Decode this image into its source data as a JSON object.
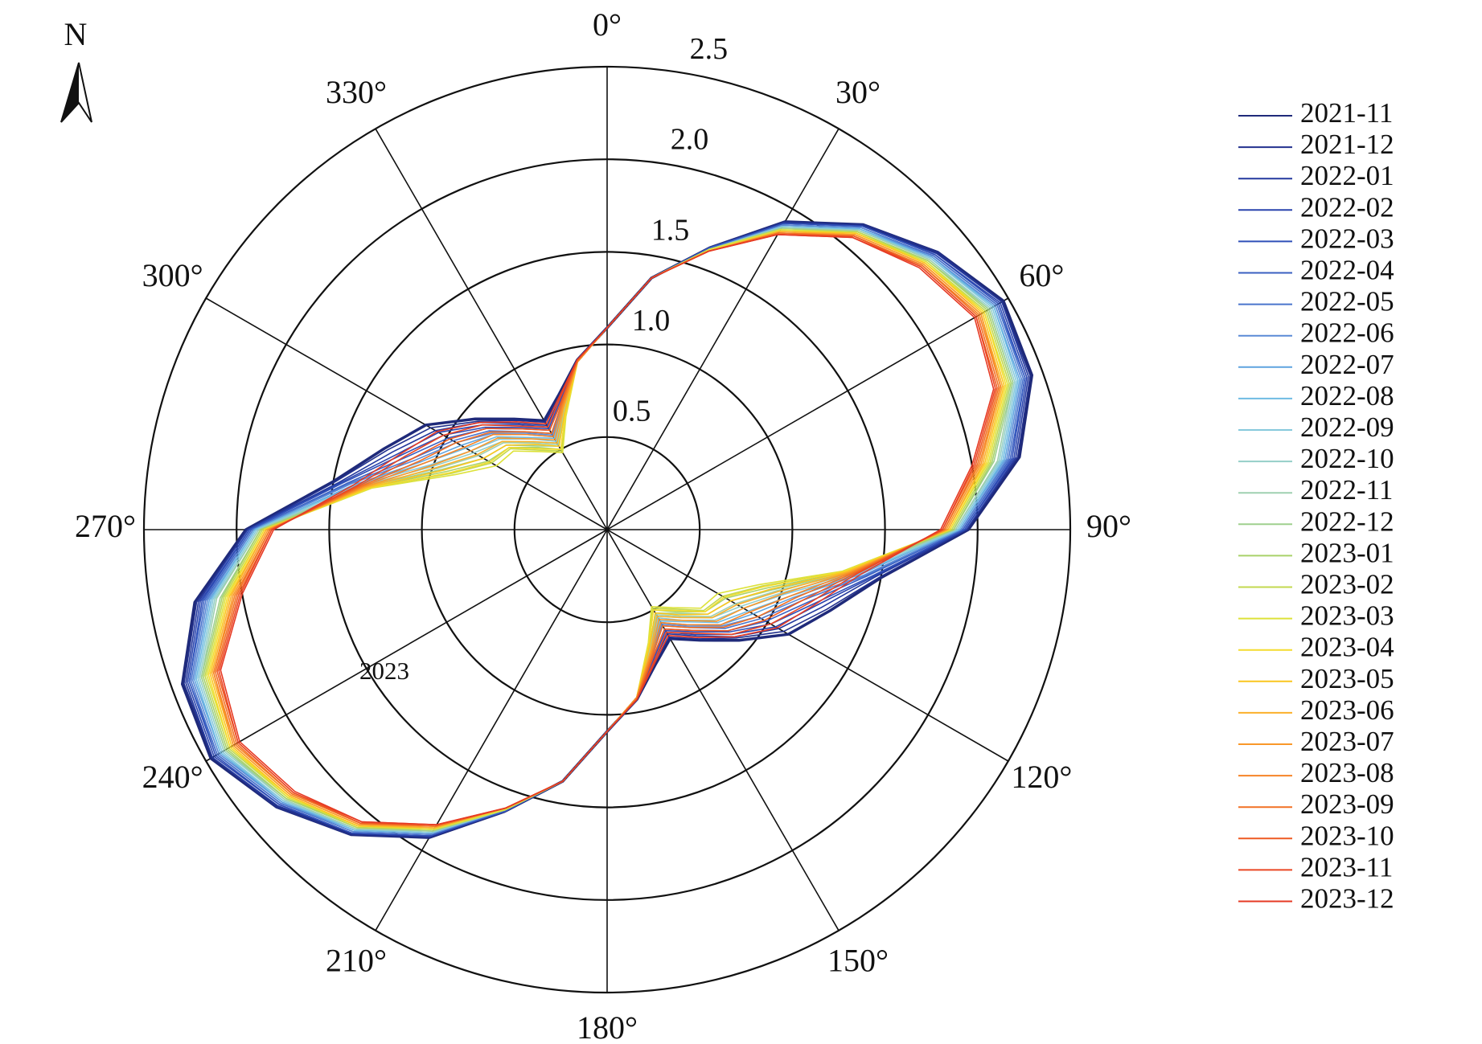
{
  "chart_data": {
    "type": "polar",
    "north_label": "N",
    "annotation": "2023",
    "theta_direction": "clockwise",
    "theta": [
      0,
      10,
      20,
      30,
      40,
      50,
      60,
      70,
      80,
      90,
      100,
      110,
      120,
      130,
      140,
      150,
      160,
      170,
      180,
      190,
      200,
      210,
      220,
      230,
      240,
      250,
      260,
      270,
      280,
      290,
      300,
      310,
      320,
      330,
      340,
      350
    ],
    "thetaticks": [
      {
        "value": 0,
        "label": "0°"
      },
      {
        "value": 30,
        "label": "30°"
      },
      {
        "value": 60,
        "label": "60°"
      },
      {
        "value": 90,
        "label": "90°"
      },
      {
        "value": 120,
        "label": "120°"
      },
      {
        "value": 150,
        "label": "150°"
      },
      {
        "value": 180,
        "label": "180°"
      },
      {
        "value": 210,
        "label": "210°"
      },
      {
        "value": 240,
        "label": "240°"
      },
      {
        "value": 270,
        "label": "270°"
      },
      {
        "value": 300,
        "label": "300°"
      },
      {
        "value": 330,
        "label": "330°"
      }
    ],
    "rlim": [
      0,
      2.5
    ],
    "rticks": [
      0.5,
      {
        "value": 1,
        "label": "1.0"
      },
      1.5,
      {
        "value": 2,
        "label": "2.0"
      },
      2.5
    ],
    "series": [
      {
        "name": "2021-11",
        "color": "#1f2a7a",
        "values": [
          1.09,
          1.38,
          1.62,
          1.92,
          2.15,
          2.33,
          2.47,
          2.44,
          2.26,
          1.95,
          1.5,
          1.28,
          1.13,
          0.93,
          0.78,
          0.68,
          0.77,
          0.93,
          1.09,
          1.38,
          1.62,
          1.92,
          2.15,
          2.33,
          2.47,
          2.44,
          2.26,
          1.95,
          1.5,
          1.28,
          1.13,
          0.93,
          0.78,
          0.68,
          0.77,
          0.93
        ]
      },
      {
        "name": "2021-12",
        "color": "#22318e",
        "values": [
          1.09,
          1.38,
          1.62,
          1.92,
          2.15,
          2.33,
          2.46,
          2.43,
          2.25,
          1.94,
          1.49,
          1.26,
          1.1,
          0.91,
          0.77,
          0.67,
          0.76,
          0.93,
          1.09,
          1.38,
          1.62,
          1.92,
          2.15,
          2.33,
          2.46,
          2.43,
          2.25,
          1.94,
          1.49,
          1.26,
          1.1,
          0.91,
          0.77,
          0.67,
          0.76,
          0.93
        ]
      },
      {
        "name": "2022-01",
        "color": "#24399e",
        "values": [
          1.09,
          1.38,
          1.62,
          1.91,
          2.14,
          2.32,
          2.46,
          2.42,
          2.24,
          1.94,
          1.47,
          1.23,
          1.07,
          0.9,
          0.75,
          0.65,
          0.75,
          0.93,
          1.09,
          1.38,
          1.62,
          1.91,
          2.14,
          2.32,
          2.46,
          2.42,
          2.24,
          1.94,
          1.47,
          1.23,
          1.07,
          0.9,
          0.75,
          0.65,
          0.75,
          0.93
        ]
      },
      {
        "name": "2022-02",
        "color": "#2a44ad",
        "values": [
          1.09,
          1.38,
          1.62,
          1.91,
          2.14,
          2.31,
          2.45,
          2.41,
          2.23,
          1.93,
          1.46,
          1.2,
          1.05,
          0.88,
          0.74,
          0.64,
          0.75,
          0.93,
          1.09,
          1.38,
          1.62,
          1.91,
          2.14,
          2.31,
          2.45,
          2.41,
          2.23,
          1.93,
          1.46,
          1.2,
          1.05,
          0.88,
          0.74,
          0.64,
          0.75,
          0.93
        ]
      },
      {
        "name": "2022-03",
        "color": "#2f4fb8",
        "values": [
          1.09,
          1.38,
          1.62,
          1.91,
          2.14,
          2.31,
          2.44,
          2.4,
          2.22,
          1.93,
          1.45,
          1.18,
          1.02,
          0.86,
          0.72,
          0.63,
          0.74,
          0.93,
          1.09,
          1.38,
          1.62,
          1.91,
          2.14,
          2.31,
          2.44,
          2.4,
          2.22,
          1.93,
          1.45,
          1.18,
          1.02,
          0.86,
          0.72,
          0.63,
          0.74,
          0.93
        ]
      },
      {
        "name": "2022-04",
        "color": "#3a5fc2",
        "values": [
          1.09,
          1.38,
          1.62,
          1.9,
          2.13,
          2.3,
          2.43,
          2.4,
          2.21,
          1.92,
          1.43,
          1.15,
          0.99,
          0.85,
          0.71,
          0.62,
          0.73,
          0.93,
          1.09,
          1.38,
          1.62,
          1.9,
          2.13,
          2.3,
          2.43,
          2.4,
          2.21,
          1.92,
          1.43,
          1.15,
          0.99,
          0.85,
          0.71,
          0.62,
          0.73,
          0.93
        ]
      },
      {
        "name": "2022-05",
        "color": "#4a74cc",
        "values": [
          1.09,
          1.38,
          1.61,
          1.9,
          2.13,
          2.3,
          2.43,
          2.39,
          2.2,
          1.91,
          1.42,
          1.12,
          0.96,
          0.83,
          0.69,
          0.6,
          0.72,
          0.93,
          1.09,
          1.38,
          1.61,
          1.9,
          2.13,
          2.3,
          2.43,
          2.39,
          2.2,
          1.91,
          1.42,
          1.12,
          0.96,
          0.83,
          0.69,
          0.6,
          0.72,
          0.93
        ]
      },
      {
        "name": "2022-06",
        "color": "#5a8ad6",
        "values": [
          1.09,
          1.38,
          1.61,
          1.9,
          2.13,
          2.29,
          2.42,
          2.38,
          2.19,
          1.91,
          1.41,
          1.1,
          0.94,
          0.81,
          0.68,
          0.59,
          0.72,
          0.93,
          1.09,
          1.38,
          1.61,
          1.9,
          2.13,
          2.29,
          2.42,
          2.38,
          2.19,
          1.91,
          1.41,
          1.1,
          0.94,
          0.81,
          0.68,
          0.59,
          0.72,
          0.93
        ]
      },
      {
        "name": "2022-07",
        "color": "#5fa3df",
        "values": [
          1.09,
          1.38,
          1.61,
          1.89,
          2.12,
          2.29,
          2.41,
          2.37,
          2.18,
          1.9,
          1.39,
          1.07,
          0.91,
          0.8,
          0.67,
          0.58,
          0.71,
          0.92,
          1.09,
          1.38,
          1.61,
          1.89,
          2.12,
          2.29,
          2.41,
          2.37,
          2.18,
          1.9,
          1.39,
          1.07,
          0.91,
          0.8,
          0.67,
          0.58,
          0.71,
          0.92
        ]
      },
      {
        "name": "2022-08",
        "color": "#6fbbe3",
        "values": [
          1.09,
          1.38,
          1.61,
          1.89,
          2.12,
          2.28,
          2.41,
          2.36,
          2.17,
          1.9,
          1.38,
          1.05,
          0.88,
          0.78,
          0.65,
          0.57,
          0.7,
          0.92,
          1.09,
          1.38,
          1.61,
          1.89,
          2.12,
          2.28,
          2.41,
          2.36,
          2.17,
          1.9,
          1.38,
          1.05,
          0.88,
          0.78,
          0.65,
          0.57,
          0.7,
          0.92
        ]
      },
      {
        "name": "2022-09",
        "color": "#86c9dc",
        "values": [
          1.09,
          1.38,
          1.61,
          1.89,
          2.11,
          2.28,
          2.4,
          2.35,
          2.16,
          1.89,
          1.37,
          1.02,
          0.85,
          0.76,
          0.64,
          0.55,
          0.69,
          0.92,
          1.09,
          1.38,
          1.61,
          1.89,
          2.11,
          2.28,
          2.4,
          2.35,
          2.16,
          1.89,
          1.37,
          1.02,
          0.85,
          0.76,
          0.64,
          0.55,
          0.69,
          0.92
        ]
      },
      {
        "name": "2022-10",
        "color": "#94cfc8",
        "values": [
          1.09,
          1.38,
          1.61,
          1.88,
          2.11,
          2.27,
          2.39,
          2.34,
          2.15,
          1.88,
          1.35,
          1,
          0.83,
          0.74,
          0.62,
          0.54,
          0.69,
          0.92,
          1.09,
          1.38,
          1.61,
          1.88,
          2.11,
          2.27,
          2.39,
          2.34,
          2.15,
          1.88,
          1.35,
          1,
          0.83,
          0.74,
          0.62,
          0.54,
          0.69,
          0.92
        ]
      },
      {
        "name": "2022-11",
        "color": "#9fd0b0",
        "values": [
          1.09,
          1.38,
          1.61,
          1.88,
          2.11,
          2.27,
          2.38,
          2.33,
          2.14,
          1.88,
          1.34,
          0.97,
          0.8,
          0.73,
          0.61,
          0.53,
          0.68,
          0.92,
          1.09,
          1.38,
          1.61,
          1.88,
          2.11,
          2.27,
          2.38,
          2.33,
          2.14,
          1.88,
          1.34,
          0.97,
          0.8,
          0.73,
          0.61,
          0.53,
          0.68,
          0.92
        ]
      },
      {
        "name": "2022-12",
        "color": "#9fd08e",
        "values": [
          1.09,
          1.38,
          1.61,
          1.88,
          2.1,
          2.26,
          2.38,
          2.33,
          2.12,
          1.87,
          1.33,
          0.95,
          0.77,
          0.71,
          0.59,
          0.52,
          0.67,
          0.92,
          1.09,
          1.38,
          1.61,
          1.88,
          2.1,
          2.26,
          2.38,
          2.33,
          2.12,
          1.87,
          1.33,
          0.95,
          0.77,
          0.71,
          0.59,
          0.52,
          0.67,
          0.92
        ]
      },
      {
        "name": "2023-01",
        "color": "#a9d26a",
        "values": [
          1.09,
          1.38,
          1.61,
          1.87,
          2.1,
          2.26,
          2.37,
          2.32,
          2.11,
          1.87,
          1.31,
          0.92,
          0.74,
          0.69,
          0.58,
          0.5,
          0.66,
          0.92,
          1.09,
          1.38,
          1.61,
          1.87,
          2.1,
          2.26,
          2.37,
          2.32,
          2.11,
          1.87,
          1.31,
          0.92,
          0.74,
          0.69,
          0.58,
          0.5,
          0.66,
          0.92
        ]
      },
      {
        "name": "2023-02",
        "color": "#c3d84f",
        "values": [
          1.09,
          1.38,
          1.61,
          1.87,
          2.1,
          2.25,
          2.36,
          2.31,
          2.1,
          1.86,
          1.3,
          0.89,
          0.72,
          0.68,
          0.56,
          0.49,
          0.66,
          0.92,
          1.09,
          1.38,
          1.61,
          1.87,
          2.1,
          2.25,
          2.36,
          2.31,
          2.1,
          1.86,
          1.3,
          0.89,
          0.72,
          0.68,
          0.56,
          0.49,
          0.66,
          0.92
        ]
      },
      {
        "name": "2023-03",
        "color": "#dde23a",
        "values": [
          1.09,
          1.38,
          1.61,
          1.87,
          2.09,
          2.25,
          2.35,
          2.3,
          2.09,
          1.85,
          1.29,
          0.87,
          0.69,
          0.66,
          0.55,
          0.48,
          0.65,
          0.92,
          1.09,
          1.38,
          1.61,
          1.87,
          2.09,
          2.25,
          2.35,
          2.3,
          2.09,
          1.85,
          1.29,
          0.87,
          0.69,
          0.66,
          0.55,
          0.48,
          0.65,
          0.92
        ]
      },
      {
        "name": "2023-04",
        "color": "#f4dc2e",
        "values": [
          1.09,
          1.38,
          1.6,
          1.86,
          2.09,
          2.24,
          2.35,
          2.29,
          2.08,
          1.85,
          1.3,
          0.9,
          0.73,
          0.69,
          0.57,
          0.5,
          0.66,
          0.92,
          1.09,
          1.38,
          1.6,
          1.86,
          2.09,
          2.24,
          2.35,
          2.29,
          2.08,
          1.85,
          1.3,
          0.9,
          0.73,
          0.69,
          0.57,
          0.5,
          0.66,
          0.92
        ]
      },
      {
        "name": "2023-05",
        "color": "#fac61f",
        "values": [
          1.09,
          1.38,
          1.6,
          1.86,
          2.09,
          2.24,
          2.34,
          2.28,
          2.07,
          1.84,
          1.31,
          0.94,
          0.77,
          0.71,
          0.6,
          0.52,
          0.67,
          0.92,
          1.09,
          1.38,
          1.6,
          1.86,
          2.09,
          2.24,
          2.34,
          2.28,
          2.07,
          1.84,
          1.31,
          0.94,
          0.77,
          0.71,
          0.6,
          0.52,
          0.67,
          0.92
        ]
      },
      {
        "name": "2023-06",
        "color": "#fbb02a",
        "values": [
          1.09,
          1.38,
          1.6,
          1.86,
          2.08,
          2.23,
          2.33,
          2.27,
          2.06,
          1.84,
          1.32,
          0.98,
          0.81,
          0.74,
          0.62,
          0.54,
          0.69,
          0.92,
          1.09,
          1.38,
          1.6,
          1.86,
          2.08,
          2.23,
          2.33,
          2.27,
          2.06,
          1.84,
          1.32,
          0.98,
          0.81,
          0.74,
          0.62,
          0.54,
          0.69,
          0.92
        ]
      },
      {
        "name": "2023-07",
        "color": "#f9982a",
        "values": [
          1.09,
          1.38,
          1.6,
          1.85,
          2.08,
          2.23,
          2.33,
          2.26,
          2.05,
          1.83,
          1.33,
          1.01,
          0.85,
          0.77,
          0.64,
          0.56,
          0.7,
          0.92,
          1.09,
          1.38,
          1.6,
          1.85,
          2.08,
          2.23,
          2.33,
          2.26,
          2.05,
          1.83,
          1.33,
          1.01,
          0.85,
          0.77,
          0.64,
          0.56,
          0.7,
          0.92
        ]
      },
      {
        "name": "2023-08",
        "color": "#f68427",
        "values": [
          1.09,
          1.38,
          1.6,
          1.85,
          2.07,
          2.22,
          2.32,
          2.26,
          2.04,
          1.82,
          1.34,
          1.05,
          0.89,
          0.8,
          0.67,
          0.58,
          0.71,
          0.92,
          1.09,
          1.38,
          1.6,
          1.85,
          2.07,
          2.22,
          2.32,
          2.26,
          2.04,
          1.82,
          1.34,
          1.05,
          0.89,
          0.8,
          0.67,
          0.58,
          0.71,
          0.92
        ]
      },
      {
        "name": "2023-09",
        "color": "#f27024",
        "values": [
          1.09,
          1.38,
          1.6,
          1.85,
          2.07,
          2.22,
          2.31,
          2.25,
          2.03,
          1.82,
          1.35,
          1.08,
          0.94,
          0.82,
          0.69,
          0.6,
          0.72,
          0.93,
          1.09,
          1.38,
          1.6,
          1.85,
          2.07,
          2.22,
          2.31,
          2.25,
          2.03,
          1.82,
          1.35,
          1.08,
          0.94,
          0.82,
          0.69,
          0.6,
          0.72,
          0.93
        ]
      },
      {
        "name": "2023-10",
        "color": "#ee5a22",
        "values": [
          1.09,
          1.38,
          1.6,
          1.84,
          2.07,
          2.21,
          2.3,
          2.24,
          2.02,
          1.81,
          1.36,
          1.12,
          0.98,
          0.85,
          0.71,
          0.62,
          0.73,
          0.93,
          1.09,
          1.38,
          1.6,
          1.84,
          2.07,
          2.21,
          2.3,
          2.24,
          2.02,
          1.81,
          1.36,
          1.12,
          0.98,
          0.85,
          0.71,
          0.62,
          0.73,
          0.93
        ]
      },
      {
        "name": "2023-11",
        "color": "#ea4724",
        "values": [
          1.09,
          1.38,
          1.6,
          1.84,
          2.06,
          2.21,
          2.3,
          2.23,
          2.01,
          1.81,
          1.37,
          1.16,
          1.02,
          0.88,
          0.73,
          0.64,
          0.75,
          0.93,
          1.09,
          1.38,
          1.6,
          1.84,
          2.06,
          2.21,
          2.3,
          2.23,
          2.01,
          1.81,
          1.37,
          1.16,
          1.02,
          0.88,
          0.73,
          0.64,
          0.75,
          0.93
        ]
      },
      {
        "name": "2023-12",
        "color": "#e63a24",
        "values": [
          1.09,
          1.38,
          1.6,
          1.84,
          2.06,
          2.2,
          2.29,
          2.22,
          2,
          1.8,
          1.39,
          1.19,
          1.06,
          0.9,
          0.76,
          0.66,
          0.76,
          0.93,
          1.09,
          1.38,
          1.6,
          1.84,
          2.06,
          2.2,
          2.29,
          2.22,
          2,
          1.8,
          1.39,
          1.19,
          1.06,
          0.9,
          0.76,
          0.66,
          0.76,
          0.93
        ]
      }
    ]
  }
}
